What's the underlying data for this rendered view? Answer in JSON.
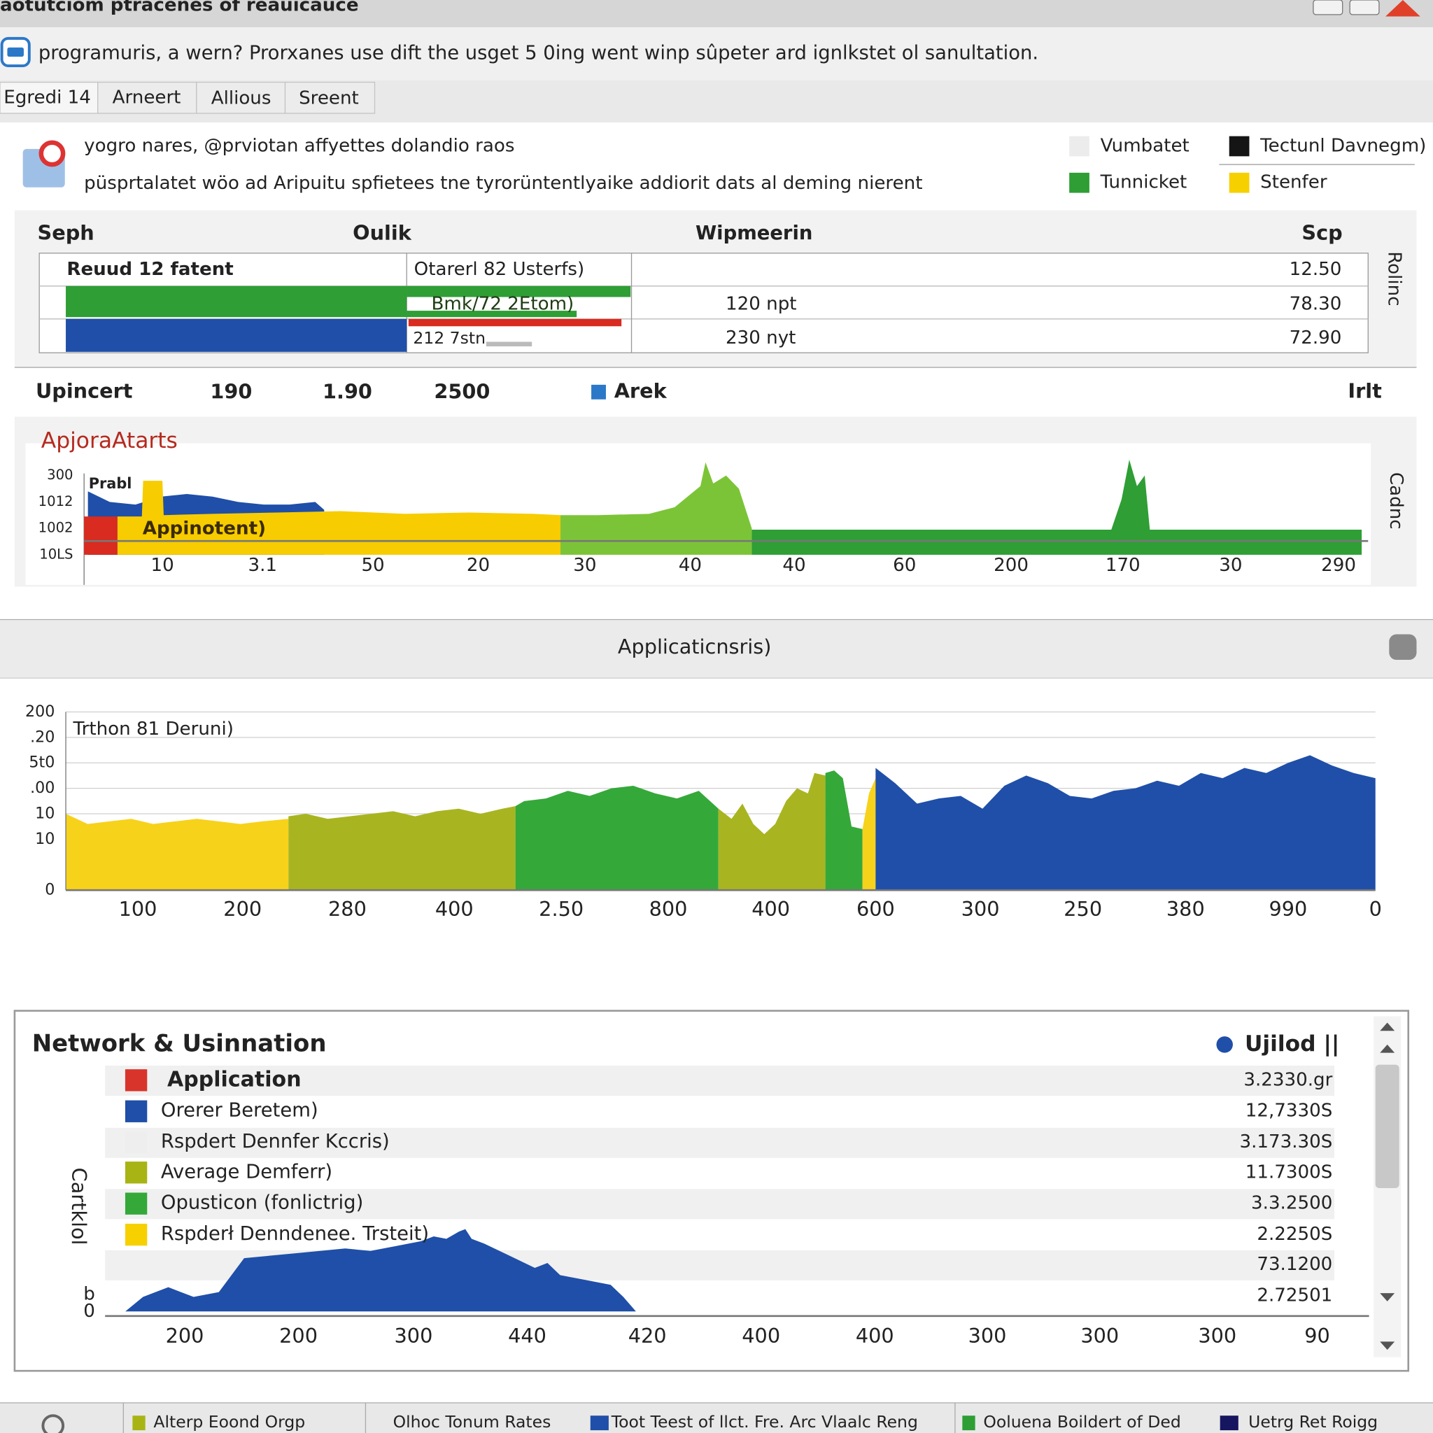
{
  "window": {
    "title": "aotutciom ptracenes of reauicauce"
  },
  "infobar": {
    "text": "programuris, a wern? Prorxanes use dift the usget 5 0ing went winp sûpeter ard ignlkstet ol sanultation."
  },
  "tabs": [
    "Egredi 14",
    "Arneert",
    "Allious",
    "Sreent"
  ],
  "summary": {
    "line1": "yogro nares, @prviotan affyettes dolandio raos",
    "line2": "püsprtalatet wöo ad Aripuitu spfietees tne tyrorüntentlyaike addiorit dats al deming nierent",
    "legend": [
      {
        "name": "Vumbatet",
        "color": "#ececec"
      },
      {
        "name": "Tectunl Davnegm)",
        "color": "#151515"
      },
      {
        "name": "Tunnicket",
        "color": "#2e9e35"
      },
      {
        "name": "Stenfer",
        "color": "#f7d000"
      }
    ]
  },
  "table": {
    "headers": [
      "Seph",
      "Oulik",
      "Wipmeerin",
      "Scp"
    ],
    "side_label": "Rolinc",
    "rows": [
      {
        "label": "Reuud 12 fatent",
        "detail": "Otarerl 82 Usterfs)",
        "value": "12.50"
      },
      {
        "detail": "Bmk/72 2Etom)",
        "unit": "120 npt",
        "value": "78.30"
      },
      {
        "detail": "212 7stn",
        "unit": "230 nyt",
        "value": "72.90"
      }
    ]
  },
  "scale_row": {
    "labels": [
      "Upincert",
      "190",
      "1.90",
      "2500"
    ],
    "legend": "Arek",
    "right": "Irlt"
  },
  "section": {
    "title": "Applicaticnsris)"
  },
  "chart_data": [
    {
      "type": "area",
      "title": "ApjoraAtarts",
      "annotations": [
        "Prabl",
        "Appinotent)"
      ],
      "side_label": "Cadnc",
      "xlim": [
        0,
        100
      ],
      "ylim": [
        0,
        3.6
      ],
      "xticks": [
        {
          "value": 6.1,
          "label": "10"
        },
        {
          "value": 13.9,
          "label": "3.1"
        },
        {
          "value": 22.5,
          "label": "50"
        },
        {
          "value": 30.7,
          "label": "20"
        },
        {
          "value": 39.0,
          "label": "30"
        },
        {
          "value": 47.2,
          "label": "40"
        },
        {
          "value": 55.3,
          "label": "40"
        },
        {
          "value": 63.9,
          "label": "60"
        },
        {
          "value": 72.2,
          "label": "200"
        },
        {
          "value": 80.9,
          "label": "170"
        },
        {
          "value": 89.3,
          "label": "30"
        },
        {
          "value": 97.7,
          "label": "290"
        }
      ],
      "yticks": [
        {
          "value": 0,
          "label": "10LS"
        },
        {
          "value": 1,
          "label": "1002"
        },
        {
          "value": 2,
          "label": "1012"
        },
        {
          "value": 3,
          "label": "300"
        }
      ],
      "grid": false,
      "series": [
        {
          "color": "#1f4fa8",
          "x": [
            0.3,
            2,
            4,
            6,
            8,
            10,
            12,
            14,
            16,
            18,
            18.7
          ],
          "values": [
            2.4,
            2.0,
            1.9,
            2.2,
            2.3,
            2.2,
            2.0,
            1.9,
            1.9,
            2.0,
            1.7
          ]
        },
        {
          "color": "#d92b20",
          "x": [
            0,
            2.6
          ],
          "values": [
            1.45,
            1.45
          ]
        },
        {
          "color": "#f7cc00",
          "x": [
            2.6,
            4.5,
            4.6,
            6.1,
            6.2,
            10,
            15,
            20,
            25,
            30,
            35,
            37.1
          ],
          "values": [
            1.45,
            1.45,
            2.8,
            2.8,
            1.5,
            1.55,
            1.6,
            1.65,
            1.55,
            1.6,
            1.55,
            1.5
          ]
        },
        {
          "color": "#7cc437",
          "x": [
            37.1,
            40,
            44,
            46,
            47,
            48,
            48.4,
            49,
            50,
            51,
            52
          ],
          "values": [
            1.5,
            1.5,
            1.55,
            1.8,
            2.2,
            2.6,
            3.5,
            2.7,
            3.0,
            2.5,
            1.0
          ]
        },
        {
          "color": "#2e9e35",
          "x": [
            52,
            60,
            70,
            80,
            80.8,
            81.4,
            82,
            82.6,
            83,
            90,
            99.5
          ],
          "values": [
            0.95,
            0.95,
            0.95,
            0.95,
            2.1,
            3.6,
            2.6,
            3.0,
            0.95,
            0.95,
            0.95
          ]
        }
      ]
    },
    {
      "type": "area",
      "annotations": [
        "Trthon 81 Deruni)"
      ],
      "xlim": [
        0,
        60
      ],
      "ylim": [
        0,
        7
      ],
      "xticks": [
        {
          "value": 3.3,
          "label": "100"
        },
        {
          "value": 8.1,
          "label": "200"
        },
        {
          "value": 12.9,
          "label": "280"
        },
        {
          "value": 17.8,
          "label": "400"
        },
        {
          "value": 22.7,
          "label": "2.50"
        },
        {
          "value": 27.6,
          "label": "800"
        },
        {
          "value": 32.3,
          "label": "400"
        },
        {
          "value": 37.1,
          "label": "600"
        },
        {
          "value": 41.9,
          "label": "300"
        },
        {
          "value": 46.6,
          "label": "250"
        },
        {
          "value": 51.3,
          "label": "380"
        },
        {
          "value": 56,
          "label": "990"
        },
        {
          "value": 60,
          "label": "0"
        }
      ],
      "yticks": [
        0,
        {
          "value": 2,
          "label": "10"
        },
        {
          "value": 3,
          "label": "10"
        },
        {
          "value": 4,
          "label": ".00"
        },
        {
          "value": 5,
          "label": "5t0"
        },
        {
          "value": 6,
          "label": ".20"
        },
        {
          "value": 7,
          "label": "200"
        }
      ],
      "grid": true,
      "series": [
        {
          "color": "#f7d21a",
          "x": [
            0,
            1,
            2,
            3,
            4,
            5,
            6,
            7,
            8,
            9,
            10.2
          ],
          "values": [
            3.0,
            2.6,
            2.7,
            2.8,
            2.6,
            2.7,
            2.8,
            2.7,
            2.6,
            2.7,
            2.8
          ]
        },
        {
          "color": "#a8b520",
          "x": [
            10.2,
            11,
            12,
            13,
            14,
            15,
            16,
            17,
            18,
            19,
            20,
            20.6
          ],
          "values": [
            2.9,
            3.0,
            2.8,
            2.9,
            3.0,
            3.1,
            2.9,
            3.1,
            3.2,
            3.0,
            3.2,
            3.3
          ]
        },
        {
          "color": "#35a83a",
          "x": [
            20.6,
            21,
            22,
            23,
            24,
            25,
            26,
            27,
            28,
            29,
            29.9
          ],
          "values": [
            3.3,
            3.5,
            3.6,
            3.9,
            3.7,
            4.0,
            4.1,
            3.8,
            3.6,
            3.9,
            3.2
          ]
        },
        {
          "color": "#a8b520",
          "x": [
            29.9,
            30.5,
            31,
            31.5,
            32,
            32.5,
            33,
            33.5,
            34,
            34.3,
            34.8
          ],
          "values": [
            3.2,
            2.8,
            3.4,
            2.6,
            2.2,
            2.6,
            3.5,
            4.0,
            3.8,
            4.6,
            4.5
          ]
        },
        {
          "color": "#35a83a",
          "x": [
            34.8,
            35.2,
            35.6,
            36,
            36.5
          ],
          "values": [
            4.6,
            4.7,
            4.4,
            2.5,
            2.4
          ]
        },
        {
          "color": "#f7d21a",
          "x": [
            36.5,
            36.8,
            37.1
          ],
          "values": [
            2.4,
            3.8,
            4.4
          ]
        },
        {
          "color": "#1f4fa8",
          "x": [
            37.1,
            38,
            39,
            40,
            41,
            42,
            43,
            44,
            45,
            46,
            47,
            48,
            49,
            50,
            51,
            52,
            53,
            54,
            55,
            56,
            57,
            58,
            59,
            60
          ],
          "values": [
            4.8,
            4.2,
            3.4,
            3.6,
            3.7,
            3.2,
            4.1,
            4.5,
            4.2,
            3.7,
            3.6,
            3.9,
            4.0,
            4.3,
            4.1,
            4.6,
            4.4,
            4.8,
            4.6,
            5.0,
            5.3,
            4.9,
            4.6,
            4.4
          ]
        }
      ]
    },
    {
      "type": "area",
      "title": "Network & Usinnation",
      "ylabel": "Cartklol",
      "legend_title": "Ujilod ||",
      "legend_color": "#1f4fa8",
      "legend_rows": [
        {
          "name": "Application",
          "color": "#d9342b",
          "value": "3.2330.gr"
        },
        {
          "name": "Orerer Beretem)",
          "color": "#1f4fa8",
          "value": "12,7330S"
        },
        {
          "name": "Rspdert Dennfer Kccris)",
          "color": "#eeeeee",
          "value": "3.173.30S"
        },
        {
          "name": "Average Demferr)",
          "color": "#a8b414",
          "value": "11.7300S"
        },
        {
          "name": "Opusticon (fonlictrig)",
          "color": "#35a83a",
          "value": "3.3.2500"
        },
        {
          "name": "Rspderł Denndenee. Trsteit)",
          "color": "#f7d000",
          "value": "2.2250S"
        }
      ],
      "extra_values": [
        "73.1200",
        "2.72501"
      ],
      "xlim": [
        0,
        100
      ],
      "ylim": [
        0,
        10
      ],
      "xticks": [
        {
          "value": 6.3,
          "label": "200"
        },
        {
          "value": 15.3,
          "label": "200"
        },
        {
          "value": 24.4,
          "label": "300"
        },
        {
          "value": 33.4,
          "label": "440"
        },
        {
          "value": 42.9,
          "label": "420"
        },
        {
          "value": 51.9,
          "label": "400"
        },
        {
          "value": 60.9,
          "label": "400"
        },
        {
          "value": 69.8,
          "label": "300"
        },
        {
          "value": 78.7,
          "label": "300"
        },
        {
          "value": 88.0,
          "label": "300"
        },
        {
          "value": 95.9,
          "label": "90"
        }
      ],
      "yticks": [
        0,
        {
          "value": 0.7,
          "label": "b"
        }
      ],
      "grid": false,
      "series": [
        {
          "color": "#1f4fa8",
          "x": [
            1.6,
            3,
            5,
            7,
            9,
            10,
            11,
            13,
            15,
            17,
            19,
            21,
            23,
            25,
            26,
            27,
            28,
            28.5,
            29,
            30,
            32,
            34,
            35,
            36,
            38,
            40,
            41,
            42
          ],
          "values": [
            0,
            0.6,
            1.0,
            0.6,
            0.8,
            1.5,
            2.2,
            2.3,
            2.4,
            2.5,
            2.6,
            2.5,
            2.7,
            2.9,
            3.1,
            3.0,
            3.3,
            3.4,
            3.0,
            2.8,
            2.3,
            1.8,
            2.0,
            1.5,
            1.3,
            1.1,
            0.6,
            0
          ]
        }
      ]
    }
  ],
  "statusbar": {
    "items": [
      "Alterp Eoond Orgp",
      "Olhoc Tonum Rates",
      "Toot Teest of llct. Fre. Arc Vlaalc Reng",
      "Ooluena Boildert of Ded",
      "Uetrg Ret Roigg"
    ]
  }
}
